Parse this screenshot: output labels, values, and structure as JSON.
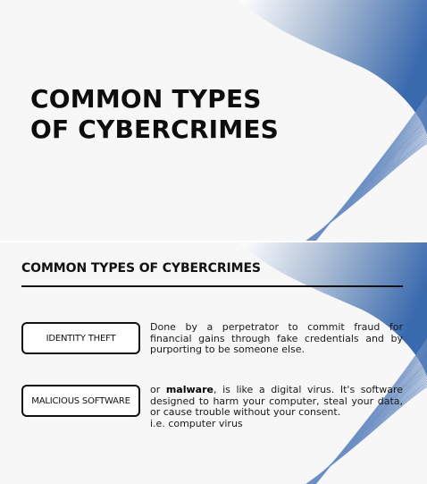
{
  "colors": {
    "accent_blue": "#3a6fb0",
    "accent_light": "#c6d6ea"
  },
  "slide1": {
    "title": "COMMON TYPES\nOF CYBERCRIMES"
  },
  "slide2": {
    "title": "COMMON TYPES OF CYBERCRIMES",
    "items": [
      {
        "label": "IDENTITY THEFT",
        "description": "Done by a perpetrator to commit fraud for financial gains through fake credentials and by purporting to be someone else."
      },
      {
        "label": "MALICIOUS SOFTWARE",
        "desc_prefix": "or ",
        "desc_bold": "malware",
        "desc_rest": ", is like a digital virus. It's software designed to harm your computer, steal your data, or cause trouble without your consent.",
        "example": "i.e. computer virus"
      }
    ]
  }
}
